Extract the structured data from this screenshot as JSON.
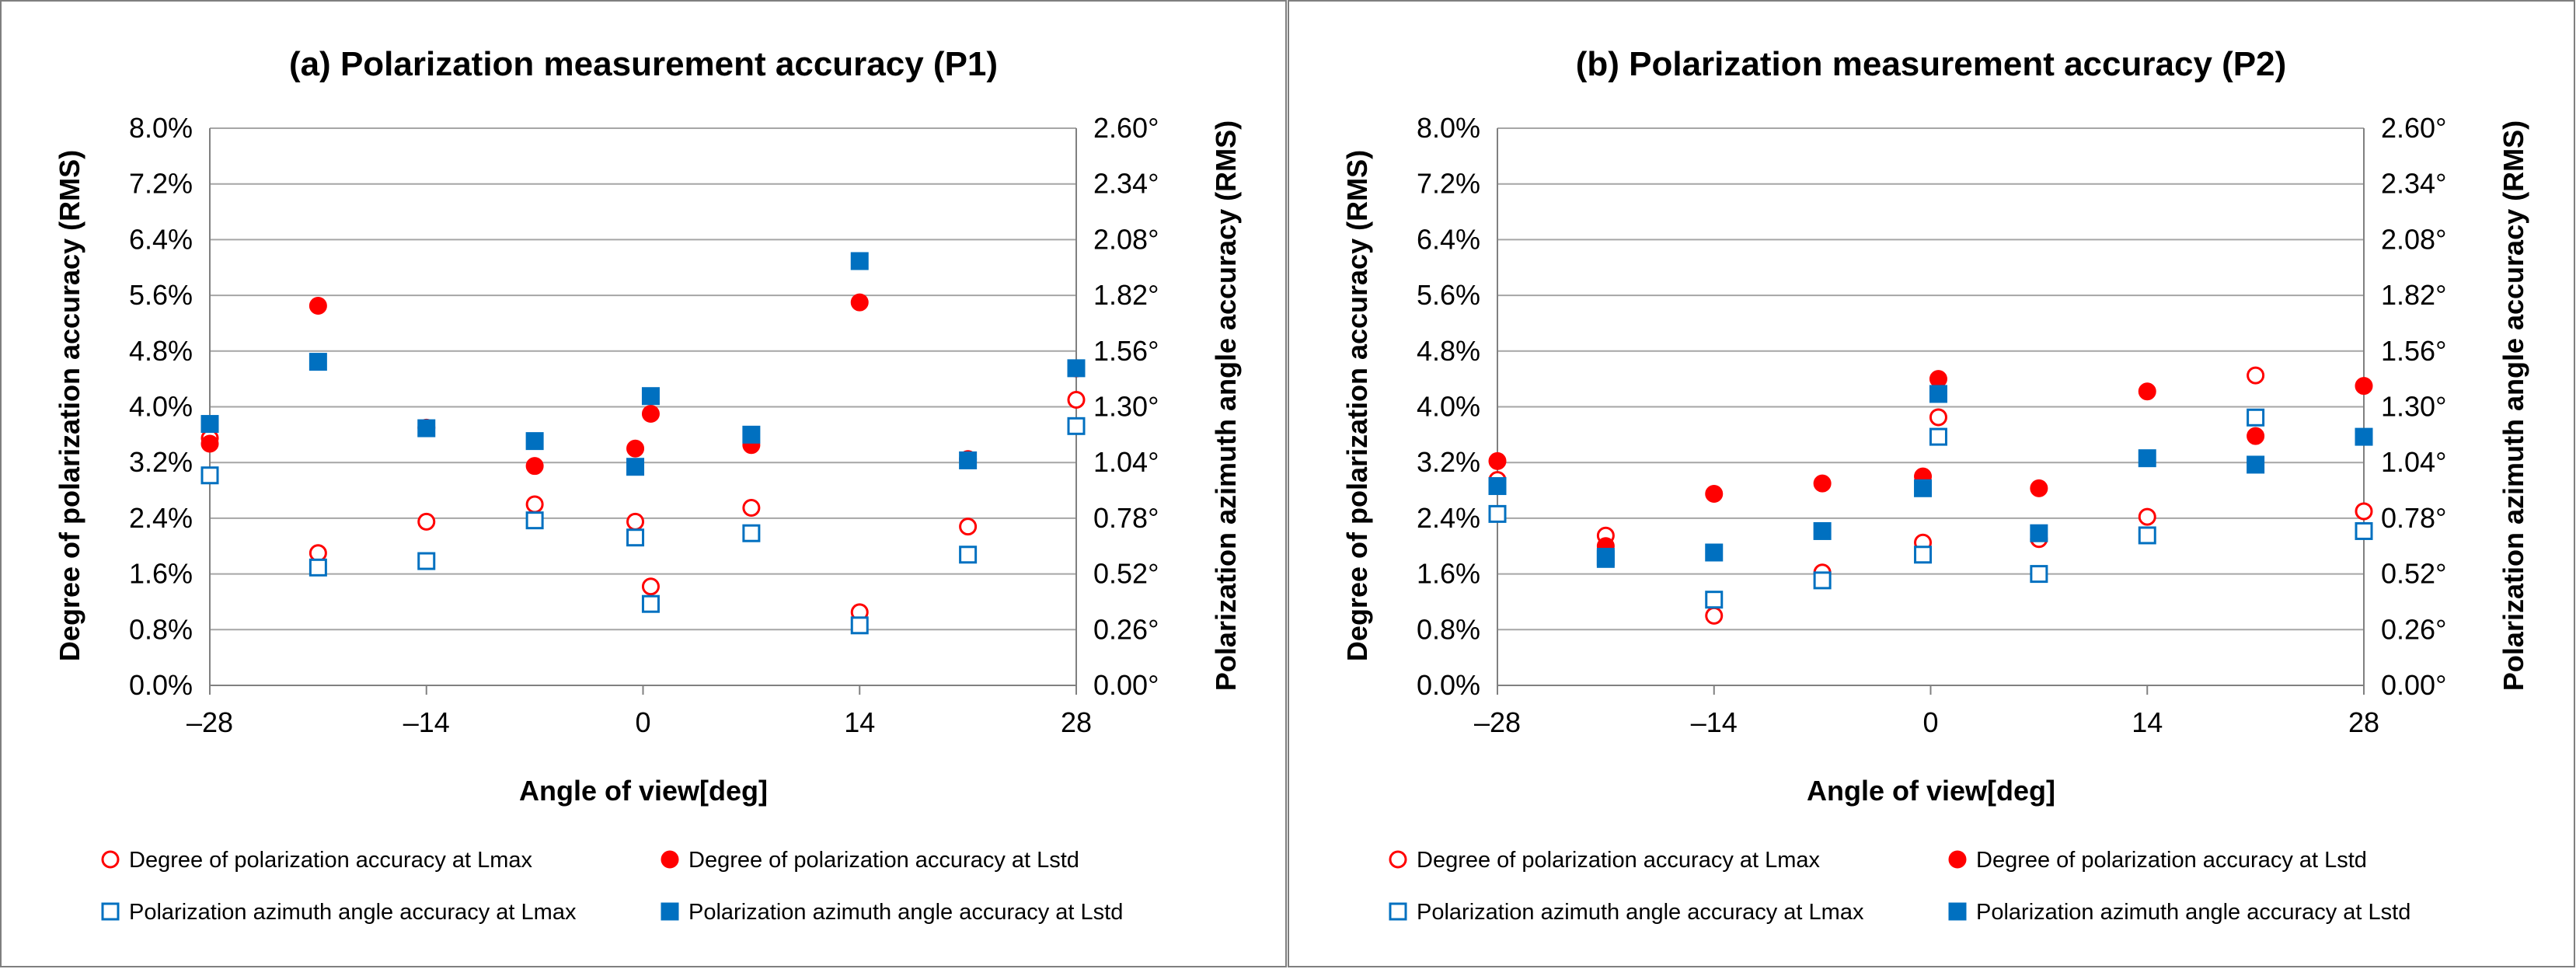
{
  "colors": {
    "red": "#ff0000",
    "blue": "#0070c0",
    "grid": "#a6a6a6",
    "axis": "#808080"
  },
  "legend_labels": [
    "Degree of polarization accuracy at Lmax",
    "Degree of polarization accuracy at Lstd",
    "Polarization azimuth angle accuracy at Lmax",
    "Polarization azimuth angle accuracy at Lstd"
  ],
  "chart_data": [
    {
      "type": "scatter",
      "title": "(a) Polarization measurement accuracy (P1)",
      "xlabel": "Angle of view[deg]",
      "ylabel": "Degree of polarization accuracy (RMS)",
      "y2label": "Polarization azimuth angle accuracy (RMS)",
      "xlim": [
        -28,
        28
      ],
      "ylim": [
        0,
        8.0
      ],
      "y2lim": [
        0,
        2.6
      ],
      "xticks": [
        "–28",
        "–14",
        "0",
        "14",
        "28"
      ],
      "xtick_values": [
        -28,
        -14,
        0,
        14,
        28
      ],
      "yticks": [
        "0.0%",
        "0.8%",
        "1.6%",
        "2.4%",
        "3.2%",
        "4.0%",
        "4.8%",
        "5.6%",
        "6.4%",
        "7.2%",
        "8.0%"
      ],
      "y2ticks": [
        "0.00°",
        "0.26°",
        "0.52°",
        "0.78°",
        "1.04°",
        "1.30°",
        "1.56°",
        "1.82°",
        "2.08°",
        "2.34°",
        "2.60°"
      ],
      "series": [
        {
          "name": "Degree of polarization accuracy at Lmax",
          "axis": "left",
          "marker": "circle-open",
          "color": "#ff0000",
          "x": [
            -28,
            -21,
            -14,
            -7,
            -0.5,
            0.5,
            7,
            14,
            21,
            28
          ],
          "y": [
            3.55,
            1.9,
            2.35,
            2.6,
            2.35,
            1.42,
            2.55,
            1.05,
            2.28,
            4.1
          ]
        },
        {
          "name": "Degree of polarization accuracy at Lstd",
          "axis": "left",
          "marker": "circle-filled",
          "color": "#ff0000",
          "x": [
            -28,
            -21,
            -14,
            -7,
            -0.5,
            0.5,
            7,
            14,
            21,
            28
          ],
          "y": [
            3.47,
            5.45,
            3.7,
            3.15,
            3.4,
            3.9,
            3.45,
            5.5,
            3.25,
            4.55
          ]
        },
        {
          "name": "Polarization azimuth angle accuracy at Lmax",
          "axis": "right",
          "marker": "square-open",
          "color": "#0070c0",
          "x": [
            -28,
            -21,
            -14,
            -7,
            -0.5,
            0.5,
            7,
            14,
            21,
            28
          ],
          "y": [
            0.98,
            0.55,
            0.58,
            0.77,
            0.69,
            0.38,
            0.71,
            0.28,
            0.61,
            1.21
          ]
        },
        {
          "name": "Polarization azimuth angle accuracy at Lstd",
          "axis": "right",
          "marker": "square-filled",
          "color": "#0070c0",
          "x": [
            -28,
            -21,
            -14,
            -7,
            -0.5,
            0.5,
            7,
            14,
            21,
            28
          ],
          "y": [
            1.22,
            1.51,
            1.2,
            1.14,
            1.02,
            1.35,
            1.17,
            1.98,
            1.05,
            1.48
          ]
        }
      ]
    },
    {
      "type": "scatter",
      "title": "(b) Polarization measurement accuracy (P2)",
      "xlabel": "Angle of view[deg]",
      "ylabel": "Degree of polarization accuracy (RMS)",
      "y2label": "Polarization azimuth angle accuracy (RMS)",
      "xlim": [
        -28,
        28
      ],
      "ylim": [
        0,
        8.0
      ],
      "y2lim": [
        0,
        2.6
      ],
      "xticks": [
        "–28",
        "–14",
        "0",
        "14",
        "28"
      ],
      "xtick_values": [
        -28,
        -14,
        0,
        14,
        28
      ],
      "yticks": [
        "0.0%",
        "0.8%",
        "1.6%",
        "2.4%",
        "3.2%",
        "4.0%",
        "4.8%",
        "5.6%",
        "6.4%",
        "7.2%",
        "8.0%"
      ],
      "y2ticks": [
        "0.00°",
        "0.26°",
        "0.52°",
        "0.78°",
        "1.04°",
        "1.30°",
        "1.56°",
        "1.82°",
        "2.08°",
        "2.34°",
        "2.60°"
      ],
      "series": [
        {
          "name": "Degree of polarization accuracy at Lmax",
          "axis": "left",
          "marker": "circle-open",
          "color": "#ff0000",
          "x": [
            -28,
            -21,
            -14,
            -7,
            -0.5,
            0.5,
            7,
            14,
            21,
            28
          ],
          "y": [
            2.95,
            2.15,
            1.0,
            1.62,
            2.05,
            3.85,
            2.1,
            2.42,
            4.45,
            2.5
          ]
        },
        {
          "name": "Degree of polarization accuracy at Lstd",
          "axis": "left",
          "marker": "circle-filled",
          "color": "#ff0000",
          "x": [
            -28,
            -21,
            -14,
            -7,
            -0.5,
            0.5,
            7,
            14,
            21,
            28
          ],
          "y": [
            3.22,
            2.0,
            2.75,
            2.9,
            3.0,
            4.4,
            2.83,
            4.22,
            3.58,
            4.3
          ]
        },
        {
          "name": "Polarization azimuth angle accuracy at Lmax",
          "axis": "right",
          "marker": "square-open",
          "color": "#0070c0",
          "x": [
            -28,
            -21,
            -14,
            -7,
            -0.5,
            0.5,
            7,
            14,
            21,
            28
          ],
          "y": [
            0.8,
            0.6,
            0.4,
            0.49,
            0.61,
            1.16,
            0.52,
            0.7,
            1.25,
            0.72
          ]
        },
        {
          "name": "Polarization azimuth angle accuracy at Lstd",
          "axis": "right",
          "marker": "square-filled",
          "color": "#0070c0",
          "x": [
            -28,
            -21,
            -14,
            -7,
            -0.5,
            0.5,
            7,
            14,
            21,
            28
          ],
          "y": [
            0.93,
            0.59,
            0.62,
            0.72,
            0.92,
            1.36,
            0.71,
            1.06,
            1.03,
            1.16
          ]
        }
      ]
    }
  ]
}
